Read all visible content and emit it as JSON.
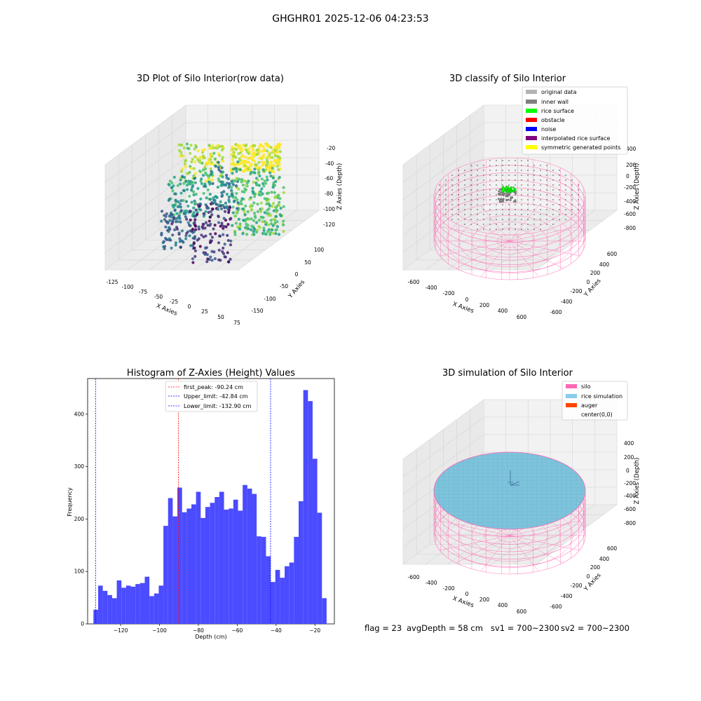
{
  "suptitle": "GHGHR01 2025-12-06 04:23:53",
  "panels": {
    "raw": {
      "title": "3D Plot of Silo Interior(row data)",
      "xlabel": "X Axies",
      "ylabel": "Y Axies",
      "zlabel": "Z Axies (Depth)",
      "xticks": [
        "-125",
        "-100",
        "-75",
        "-50",
        "-25",
        "0",
        "25",
        "50",
        "75"
      ],
      "yticks": [
        "100",
        "50",
        "0",
        "-50",
        "-100",
        "-150"
      ],
      "zticks": [
        "-20",
        "-40",
        "-60",
        "-80",
        "-100",
        "-120"
      ]
    },
    "classify": {
      "title": "3D classify of Silo Interior",
      "xlabel": "X Axies",
      "ylabel": "Y Axies",
      "zlabel": "Z Axies (Depth)",
      "xticks": [
        "-600",
        "-400",
        "-200",
        "0",
        "200",
        "400",
        "600"
      ],
      "yticks": [
        "600",
        "400",
        "200",
        "0",
        "-200",
        "-400",
        "-600"
      ],
      "zticks": [
        "400",
        "200",
        "0",
        "-200",
        "-400",
        "-600",
        "-800"
      ],
      "legend": [
        {
          "label": "original data",
          "color": "#b3b3b3"
        },
        {
          "label": "inner wall",
          "color": "#808080"
        },
        {
          "label": "rice surface",
          "color": "#00ff00"
        },
        {
          "label": "obstacle",
          "color": "#ff0000"
        },
        {
          "label": "noise",
          "color": "#0000ff"
        },
        {
          "label": "interpolated rice surface",
          "color": "#800080"
        },
        {
          "label": "symmetric generated points",
          "color": "#ffff00"
        }
      ]
    },
    "simulation": {
      "title": "3D simulation of Silo Interior",
      "xlabel": "X Axies",
      "ylabel": "Y Axies",
      "zlabel": "Z Axies (Depth)",
      "xticks": [
        "-600",
        "-400",
        "-200",
        "0",
        "200",
        "400",
        "600"
      ],
      "yticks": [
        "600",
        "400",
        "200",
        "0",
        "-200",
        "-400",
        "-600"
      ],
      "zticks": [
        "400",
        "200",
        "0",
        "-200",
        "-400",
        "-600",
        "-800"
      ],
      "legend": [
        {
          "label": "silo",
          "color": "#ff69b4"
        },
        {
          "label": "rice simulation",
          "color": "#87ceeb"
        },
        {
          "label": "auger",
          "color": "#ff4500"
        },
        {
          "label": "center(0,0)",
          "color": ""
        }
      ]
    }
  },
  "status": {
    "flag": "flag = 23",
    "avg_depth": "avgDepth = 58 cm",
    "sv1": "sv1 = 700~2300",
    "sv2": "sv2 = 700~2300"
  },
  "chart_data": {
    "type": "bar",
    "title": "Histogram of Z-Axies (Height) Values",
    "xlabel": "Depth (cm)",
    "ylabel": "Frequency",
    "xlim": [
      -137,
      -10
    ],
    "ylim": [
      0,
      468
    ],
    "xticks": [
      -120,
      -100,
      -80,
      -60,
      -40,
      -20
    ],
    "yticks": [
      0,
      100,
      200,
      300,
      400
    ],
    "bar_color": "#4b4bff",
    "bin_start": -134.0,
    "bin_width": 2.4,
    "values": [
      27,
      73,
      63,
      55,
      49,
      83,
      69,
      73,
      71,
      76,
      78,
      90,
      53,
      58,
      73,
      187,
      240,
      205,
      260,
      213,
      220,
      228,
      252,
      202,
      223,
      231,
      242,
      252,
      218,
      220,
      237,
      216,
      265,
      258,
      248,
      167,
      166,
      129,
      80,
      103,
      88,
      110,
      117,
      166,
      234,
      446,
      425,
      315,
      212,
      49
    ],
    "vlines": [
      {
        "label": "first_peak: -90.24 cm",
        "x": -90.24,
        "color": "#ff0000"
      },
      {
        "label": "Upper_limit: -42.84 cm",
        "x": -42.84,
        "color": "#0000ff"
      },
      {
        "label": "Lower_limit: -132.90 cm",
        "x": -132.9,
        "color": "#0000ff"
      }
    ]
  }
}
